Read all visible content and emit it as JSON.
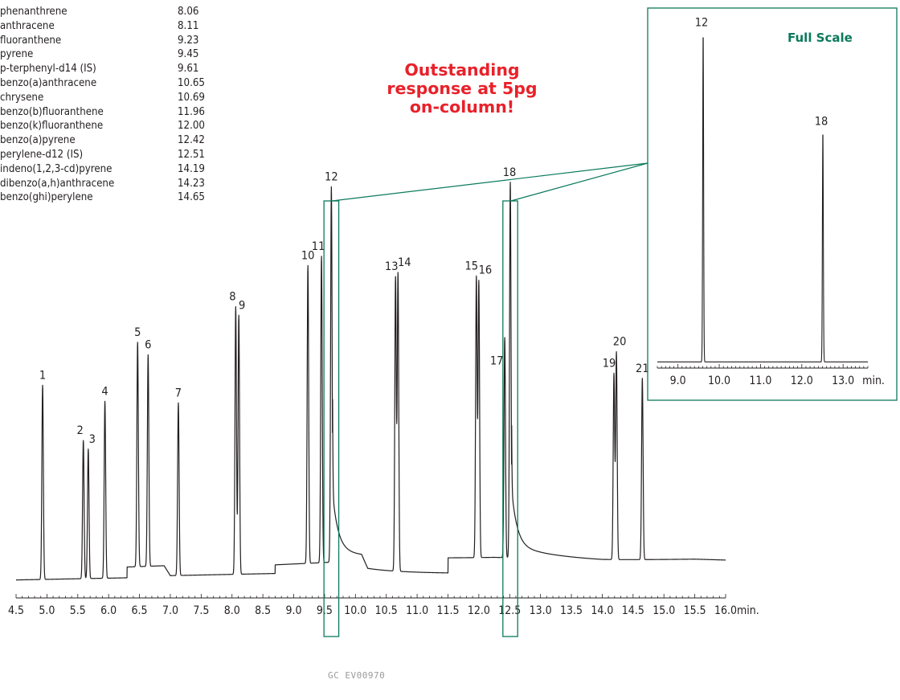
{
  "legend": [
    {
      "name": "phenanthrene",
      "rt": "8.06"
    },
    {
      "name": "anthracene",
      "rt": "8.11"
    },
    {
      "name": "fluoranthene",
      "rt": "9.23"
    },
    {
      "name": "pyrene",
      "rt": "9.45"
    },
    {
      "name": "p-terphenyl-d14 (IS)",
      "rt": "9.61"
    },
    {
      "name": "benzo(a)anthracene",
      "rt": "10.65"
    },
    {
      "name": "chrysene",
      "rt": "10.69"
    },
    {
      "name": "benzo(b)fluoranthene",
      "rt": "11.96"
    },
    {
      "name": "benzo(k)fluoranthene",
      "rt": "12.00"
    },
    {
      "name": "benzo(a)pyrene",
      "rt": "12.42"
    },
    {
      "name": "perylene-d12 (IS)",
      "rt": "12.51"
    },
    {
      "name": "indeno(1,2,3-cd)pyrene",
      "rt": "14.19"
    },
    {
      "name": "dibenzo(a,h)anthracene",
      "rt": "14.23"
    },
    {
      "name": "benzo(ghi)perylene",
      "rt": "14.65"
    }
  ],
  "callout": {
    "line1": "Outstanding",
    "line2": "response at 5pg",
    "line3": "on-column!"
  },
  "inset_label": "Full Scale",
  "footer_code": "GC  EV00970",
  "colors": {
    "trace": "#231f20",
    "callout": "#e8212a",
    "accent": "#0b7a5c"
  },
  "chart_data": [
    {
      "type": "line",
      "x_unit": "min.",
      "xlim": [
        4.5,
        16.0
      ],
      "xticks": [
        "4.5",
        "5.0",
        "5.5",
        "6.0",
        "6.5",
        "7.0",
        "7.5",
        "8.0",
        "8.5",
        "9.0",
        "9.5",
        "10.0",
        "10.5",
        "11.0",
        "11.5",
        "12.0",
        "12.5",
        "13.0",
        "13.5",
        "14.0",
        "14.5",
        "15.0",
        "15.5",
        "16.0"
      ],
      "ylim": [
        0,
        100
      ],
      "baseline": [
        {
          "x": 4.5,
          "y": 1.0
        },
        {
          "x": 6.3,
          "y": 1.5
        },
        {
          "x": 6.3,
          "y": 4.0
        },
        {
          "x": 6.9,
          "y": 4.3
        },
        {
          "x": 7.0,
          "y": 2.0
        },
        {
          "x": 8.7,
          "y": 2.5
        },
        {
          "x": 8.7,
          "y": 4.5
        },
        {
          "x": 9.45,
          "y": 5.0
        },
        {
          "x": 10.1,
          "y": 5.5
        },
        {
          "x": 10.2,
          "y": 2.5
        },
        {
          "x": 11.5,
          "y": 2.5
        },
        {
          "x": 11.5,
          "y": 6.0
        },
        {
          "x": 12.25,
          "y": 6.2
        },
        {
          "x": 13.0,
          "y": 6.0
        },
        {
          "x": 14.0,
          "y": 5.5
        },
        {
          "x": 15.5,
          "y": 5.8
        },
        {
          "x": 16.0,
          "y": 5.6
        }
      ],
      "peaks": [
        {
          "label": "1",
          "rt": 4.93,
          "height": 45
        },
        {
          "label": "2",
          "rt": 5.59,
          "height": 32
        },
        {
          "label": "3",
          "rt": 5.67,
          "height": 30
        },
        {
          "label": "4",
          "rt": 5.94,
          "height": 41
        },
        {
          "label": "5",
          "rt": 6.47,
          "height": 52
        },
        {
          "label": "6",
          "rt": 6.64,
          "height": 49
        },
        {
          "label": "7",
          "rt": 7.13,
          "height": 40
        },
        {
          "label": "8",
          "rt": 8.06,
          "height": 62
        },
        {
          "label": "9",
          "rt": 8.11,
          "height": 60
        },
        {
          "label": "10",
          "rt": 9.23,
          "height": 69
        },
        {
          "label": "11",
          "rt": 9.45,
          "height": 71
        },
        {
          "label": "12",
          "rt": 9.61,
          "height": 87
        },
        {
          "label": "13",
          "rt": 10.65,
          "height": 68
        },
        {
          "label": "14",
          "rt": 10.69,
          "height": 69
        },
        {
          "label": "15",
          "rt": 11.96,
          "height": 65
        },
        {
          "label": "16",
          "rt": 12.0,
          "height": 64
        },
        {
          "label": "17",
          "rt": 12.42,
          "height": 51
        },
        {
          "label": "18",
          "rt": 12.51,
          "height": 87
        },
        {
          "label": "19",
          "rt": 14.19,
          "height": 43
        },
        {
          "label": "20",
          "rt": 14.23,
          "height": 48
        },
        {
          "label": "21",
          "rt": 14.65,
          "height": 42
        }
      ],
      "highlight_windows": [
        [
          9.49,
          9.73
        ],
        [
          12.39,
          12.63
        ]
      ]
    },
    {
      "type": "line",
      "x_unit": "min.",
      "xlim": [
        8.5,
        13.6
      ],
      "xticks": [
        "9.0",
        "10.0",
        "11.0",
        "12.0",
        "13.0"
      ],
      "ylim": [
        0,
        100
      ],
      "peaks": [
        {
          "label": "12",
          "rt": 9.61,
          "height": 100
        },
        {
          "label": "18",
          "rt": 12.51,
          "height": 70
        }
      ]
    }
  ]
}
